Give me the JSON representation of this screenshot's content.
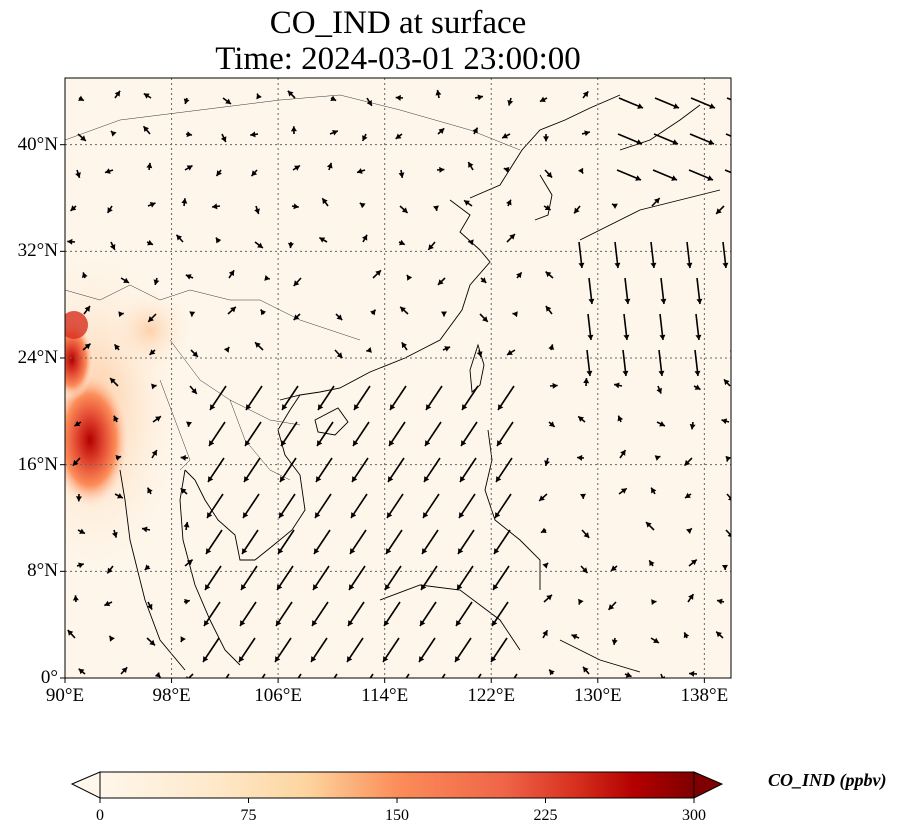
{
  "title_line1": "CO_IND at surface",
  "title_line2": "Time: 2024-03-01 23:00:00",
  "map": {
    "projection": "PlateCarree",
    "lon_range": [
      90,
      140
    ],
    "lat_range": [
      0,
      45
    ],
    "gridlines": "dotted",
    "field": "CO_IND",
    "colormap": "OrRd",
    "colors": {
      "low": "#fff7ec",
      "mid": "#fdbb84",
      "high": "#d7301f",
      "top": "#7f0000",
      "grid": "#666666"
    },
    "lat_ticks": [
      {
        "value": 0,
        "label": "0°"
      },
      {
        "value": 8,
        "label": "8°N"
      },
      {
        "value": 16,
        "label": "16°N"
      },
      {
        "value": 24,
        "label": "24°N"
      },
      {
        "value": 32,
        "label": "32°N"
      },
      {
        "value": 40,
        "label": "40°N"
      }
    ],
    "lon_ticks": [
      {
        "value": 90,
        "label": "90°E"
      },
      {
        "value": 98,
        "label": "98°E"
      },
      {
        "value": 106,
        "label": "106°E"
      },
      {
        "value": 114,
        "label": "114°E"
      },
      {
        "value": 122,
        "label": "122°E"
      },
      {
        "value": 130,
        "label": "130°E"
      },
      {
        "value": 138,
        "label": "138°E"
      }
    ],
    "wind_vectors": "quiver"
  },
  "colorbar": {
    "label": "CO_IND (ppbv)",
    "min": 0,
    "max": 300,
    "extend": "both",
    "ticks": [
      {
        "value": 0,
        "label": "0"
      },
      {
        "value": 75,
        "label": "75"
      },
      {
        "value": 150,
        "label": "150"
      },
      {
        "value": 225,
        "label": "225"
      },
      {
        "value": 300,
        "label": "300"
      }
    ]
  }
}
